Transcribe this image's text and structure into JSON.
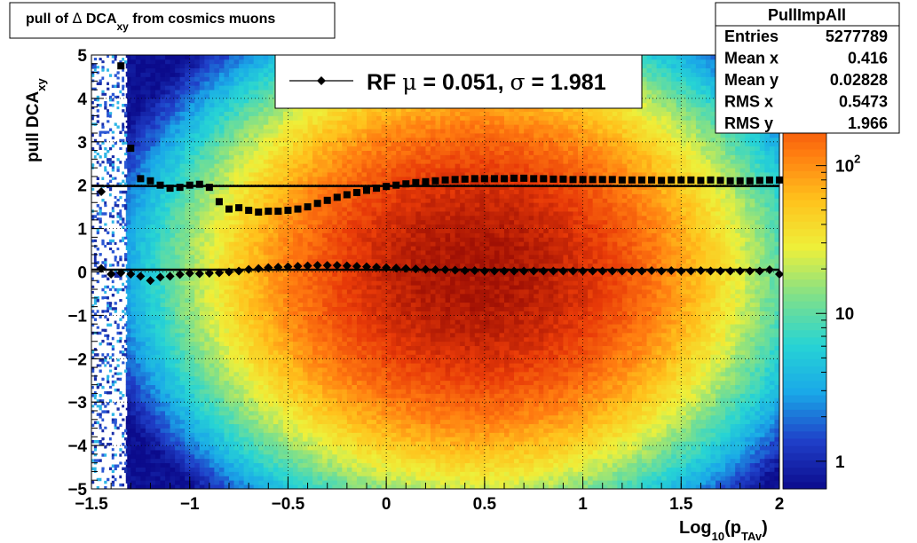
{
  "title": {
    "prefix": "pull of ",
    "delta": "Δ",
    "mid": " DCA",
    "sub": "xy",
    "suffix": " from cosmics muons"
  },
  "stats": {
    "name": "PullImpAll",
    "rows": [
      {
        "label": "Entries",
        "value": "5277789"
      },
      {
        "label": "Mean x",
        "value": "0.416"
      },
      {
        "label": "Mean y",
        "value": "0.02828"
      },
      {
        "label": "RMS x",
        "value": "0.5473"
      },
      {
        "label": "RMS y",
        "value": "1.966"
      }
    ]
  },
  "legend": {
    "prefix": "RF ",
    "mu": "μ",
    "mid": " =  0.051, ",
    "sigma": "σ",
    "suffix": " =   1.981"
  },
  "axes": {
    "x_main": "Log",
    "x_sub1": "10",
    "x_mid": "(p",
    "x_sub2": "TAv",
    "x_end": ")",
    "y_main": "pull DCA",
    "y_sub": "xy"
  },
  "chart_data": {
    "type": "heatmap",
    "xlim": [
      -1.5,
      2
    ],
    "ylim": [
      -5,
      5
    ],
    "xticks": [
      -1.5,
      -1,
      -0.5,
      0,
      0.5,
      1,
      1.5,
      2
    ],
    "xtick_labels": [
      "−1.5",
      "−1",
      "−0.5",
      "0",
      "0.5",
      "1",
      "1.5",
      "2"
    ],
    "yticks": [
      -5,
      -4,
      -3,
      -2,
      -1,
      0,
      1,
      2,
      3,
      4,
      5
    ],
    "ytick_labels": [
      "−5",
      "−4",
      "−3",
      "−2",
      "−1",
      "0",
      "1",
      "2",
      "3",
      "4",
      "5"
    ],
    "grid": true,
    "log_z": true,
    "z_ticks": [
      1,
      10,
      100
    ],
    "z_tick_labels": [
      {
        "base": "1",
        "exp": ""
      },
      {
        "base": "10",
        "exp": ""
      },
      {
        "base": "10",
        "exp": "2"
      }
    ],
    "z_range": [
      0.65,
      560
    ],
    "palette": [
      "#0b0b8c",
      "#1f3fc8",
      "#1aa8e8",
      "#27d4d4",
      "#7fe08a",
      "#eef03a",
      "#ffc21c",
      "#ff7a10",
      "#e83a08",
      "#a01004"
    ],
    "density_model": {
      "x_mean": 0.45,
      "x_sigma": 0.55,
      "y_sigma": 1.98,
      "peak": 520,
      "low_cut": -1.32,
      "low_floor": 0.6
    },
    "mean_profile": {
      "x": [
        -1.45,
        -1.4,
        -1.35,
        -1.3,
        -1.25,
        -1.2,
        -1.15,
        -1.1,
        -1.05,
        -1.0,
        -0.95,
        -0.9,
        -0.85,
        -0.8,
        -0.75,
        -0.7,
        -0.65,
        -0.6,
        -0.55,
        -0.5,
        -0.45,
        -0.4,
        -0.35,
        -0.3,
        -0.25,
        -0.2,
        -0.15,
        -0.1,
        -0.05,
        0.0,
        0.05,
        0.1,
        0.15,
        0.2,
        0.25,
        0.3,
        0.35,
        0.4,
        0.45,
        0.5,
        0.55,
        0.6,
        0.65,
        0.7,
        0.75,
        0.8,
        0.85,
        0.9,
        0.95,
        1.0,
        1.05,
        1.1,
        1.15,
        1.2,
        1.25,
        1.3,
        1.35,
        1.4,
        1.45,
        1.5,
        1.55,
        1.6,
        1.65,
        1.7,
        1.75,
        1.8,
        1.85,
        1.9,
        1.95,
        2.0
      ],
      "y": [
        0.08,
        -0.05,
        -0.02,
        -0.05,
        -0.1,
        -0.2,
        -0.12,
        -0.1,
        -0.06,
        -0.03,
        -0.04,
        -0.03,
        -0.02,
        0.0,
        0.02,
        0.06,
        0.08,
        0.1,
        0.11,
        0.12,
        0.13,
        0.14,
        0.15,
        0.15,
        0.15,
        0.14,
        0.13,
        0.12,
        0.11,
        0.1,
        0.09,
        0.08,
        0.07,
        0.06,
        0.05,
        0.05,
        0.04,
        0.03,
        0.03,
        0.02,
        0.02,
        0.02,
        0.02,
        0.02,
        0.02,
        0.02,
        0.02,
        0.02,
        0.02,
        0.02,
        0.02,
        0.02,
        0.02,
        0.02,
        0.02,
        0.02,
        0.03,
        0.02,
        0.03,
        0.02,
        0.02,
        0.03,
        0.02,
        0.02,
        0.02,
        0.02,
        0.02,
        0.02,
        0.05,
        -0.05
      ],
      "fit": 0.051
    },
    "rms_profile": {
      "x": [
        -1.45,
        -1.35,
        -1.3,
        -1.25,
        -1.2,
        -1.15,
        -1.1,
        -1.05,
        -1.0,
        -0.95,
        -0.9,
        -0.85,
        -0.8,
        -0.75,
        -0.7,
        -0.65,
        -0.6,
        -0.55,
        -0.5,
        -0.45,
        -0.4,
        -0.35,
        -0.3,
        -0.25,
        -0.2,
        -0.15,
        -0.1,
        -0.05,
        0.0,
        0.05,
        0.1,
        0.15,
        0.2,
        0.25,
        0.3,
        0.35,
        0.4,
        0.45,
        0.5,
        0.55,
        0.6,
        0.65,
        0.7,
        0.75,
        0.8,
        0.85,
        0.9,
        0.95,
        1.0,
        1.05,
        1.1,
        1.15,
        1.2,
        1.25,
        1.3,
        1.35,
        1.4,
        1.45,
        1.5,
        1.55,
        1.6,
        1.65,
        1.7,
        1.75,
        1.8,
        1.85,
        1.9,
        1.95,
        2.0
      ],
      "y": [
        1.85,
        4.75,
        2.85,
        2.15,
        2.1,
        2.0,
        1.93,
        1.95,
        2.0,
        2.02,
        1.95,
        1.62,
        1.45,
        1.48,
        1.42,
        1.38,
        1.4,
        1.4,
        1.42,
        1.45,
        1.5,
        1.58,
        1.65,
        1.72,
        1.78,
        1.83,
        1.88,
        1.93,
        1.97,
        2.0,
        2.03,
        2.06,
        2.08,
        2.1,
        2.12,
        2.13,
        2.14,
        2.15,
        2.15,
        2.15,
        2.15,
        2.16,
        2.16,
        2.15,
        2.15,
        2.14,
        2.14,
        2.13,
        2.13,
        2.13,
        2.13,
        2.13,
        2.12,
        2.12,
        2.12,
        2.12,
        2.11,
        2.12,
        2.12,
        2.12,
        2.11,
        2.12,
        2.11,
        2.1,
        2.1,
        2.1,
        2.11,
        2.12,
        2.12
      ],
      "fit": 1.981
    }
  }
}
